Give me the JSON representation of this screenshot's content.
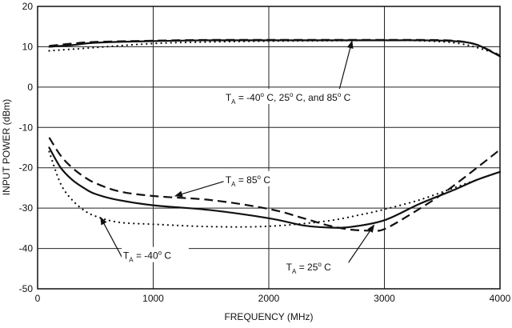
{
  "chart_data": {
    "type": "line",
    "title": "",
    "xlabel": "FREQUENCY (MHz)",
    "ylabel": "INPUT POWER (dBm)",
    "xlim": [
      0,
      4000
    ],
    "ylim": [
      -50,
      20
    ],
    "xticks": [
      0,
      1000,
      2000,
      3000,
      4000
    ],
    "yticks": [
      20,
      10,
      0,
      -10,
      -20,
      -30,
      -40,
      -50
    ],
    "grid": true,
    "series": [
      {
        "name": "upper T_A = -40°C",
        "style": "dotted",
        "x": [
          100,
          500,
          1000,
          1500,
          2000,
          2500,
          3000,
          3300,
          3600,
          3800,
          4000
        ],
        "y": [
          9,
          9.8,
          10.8,
          11.2,
          11.4,
          11.5,
          11.6,
          11.5,
          11.0,
          9.8,
          8
        ]
      },
      {
        "name": "upper T_A = 25°C",
        "style": "solid",
        "x": [
          100,
          300,
          500,
          1000,
          1500,
          2000,
          2500,
          3000,
          3300,
          3600,
          3800,
          4000
        ],
        "y": [
          10,
          10.4,
          11,
          11.4,
          11.6,
          11.6,
          11.6,
          11.6,
          11.6,
          11.4,
          10.5,
          7.6
        ]
      },
      {
        "name": "upper T_A = 85°C",
        "style": "dashed",
        "x": [
          100,
          300,
          500,
          1000,
          1500,
          2000,
          2500,
          3000,
          3300,
          3600,
          3800,
          4000
        ],
        "y": [
          10.2,
          10.8,
          11.2,
          11.5,
          11.7,
          11.7,
          11.7,
          11.7,
          11.7,
          11.5,
          10.5,
          7.8
        ]
      },
      {
        "name": "T_A = -40°C",
        "style": "dotted",
        "x": [
          100,
          200,
          300,
          400,
          500,
          700,
          1000,
          1500,
          2000,
          2500,
          2800,
          3000,
          3300,
          3600,
          3800,
          4000
        ],
        "y": [
          -16,
          -24,
          -28,
          -30.5,
          -32,
          -33.5,
          -34,
          -34.6,
          -34.5,
          -33.2,
          -31.6,
          -30.3,
          -28,
          -25,
          -23,
          -21
        ]
      },
      {
        "name": "T_A = 25°C",
        "style": "solid",
        "x": [
          100,
          200,
          300,
          400,
          500,
          700,
          1000,
          1500,
          2000,
          2300,
          2500,
          2700,
          3000,
          3300,
          3600,
          3800,
          4000
        ],
        "y": [
          -15,
          -20,
          -23,
          -25,
          -26.5,
          -28,
          -29.3,
          -30.5,
          -32.5,
          -34.3,
          -34.8,
          -34.7,
          -33,
          -29,
          -25.5,
          -23,
          -21
        ]
      },
      {
        "name": "T_A = 85°C",
        "style": "dashed",
        "x": [
          100,
          200,
          300,
          400,
          500,
          700,
          1000,
          1500,
          2000,
          2300,
          2500,
          2700,
          2900,
          3000,
          3200,
          3500,
          3800,
          4000
        ],
        "y": [
          -12.5,
          -17,
          -20,
          -22.2,
          -23.8,
          -25.8,
          -27,
          -28,
          -30.2,
          -32.5,
          -34.2,
          -35.3,
          -35.6,
          -35.2,
          -32,
          -26.5,
          -20,
          -15.5
        ]
      }
    ],
    "annotations": [
      {
        "id": "all",
        "base": "T",
        "sub": "A",
        "rest": " = -40",
        "sup1": "o",
        "rest2": " C, 25",
        "sup2": "o",
        "rest3": " C, and 85",
        "sup3": "o",
        "rest4": " C",
        "label_x": 1625,
        "label_y": -3,
        "arrow_from": [
          2590,
          -2.8
        ],
        "arrow_to": [
          2720,
          11.4
        ]
      },
      {
        "id": "t85",
        "base": "T",
        "sub": "A",
        "rest": " = 85",
        "sup1": "o",
        "rest2": " C",
        "label_x": 1625,
        "label_y": -23.4,
        "arrow_from": [
          1610,
          -23.4
        ],
        "arrow_to": [
          1190,
          -27
        ]
      },
      {
        "id": "tm40",
        "base": "T",
        "sub": "A",
        "rest": " = -40",
        "sup1": "o",
        "rest2": " C",
        "label_x": 740,
        "label_y": -42.2,
        "arrow_from": [
          730,
          -42.2
        ],
        "arrow_to": [
          545,
          -32.3
        ]
      },
      {
        "id": "t25",
        "base": "T",
        "sub": "A",
        "rest": " = 25",
        "sup1": "o",
        "rest2": " C",
        "label_x": 2150,
        "label_y": -45,
        "arrow_from": [
          2670,
          -44.3
        ],
        "arrow_to": [
          2910,
          -34.2
        ]
      }
    ]
  }
}
